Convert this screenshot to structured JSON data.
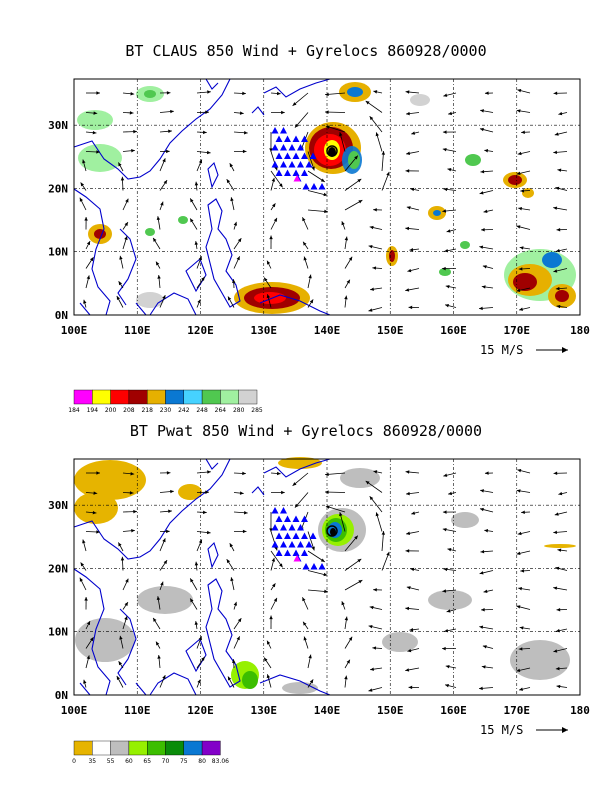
{
  "top": {
    "title": "BT CLAUS 850 Wind + Gyrelocs 860928/0000",
    "colorbar": {
      "colors": [
        "#ff00ff",
        "#ffff00",
        "#ff0000",
        "#a00000",
        "#e6b000",
        "#0a78d2",
        "#46d2ff",
        "#50c850",
        "#a0f0a0",
        "#d2d2d2"
      ],
      "labels": [
        "184",
        "194",
        "200",
        "208",
        "218",
        "230",
        "242",
        "248",
        "264",
        "280",
        "285"
      ]
    }
  },
  "bottom": {
    "title": "BT Pwat 850 Wind + Gyrelocs 860928/0000",
    "colorbar": {
      "colors": [
        "#e6b400",
        "#ffffff",
        "#bebebe",
        "#96f000",
        "#3cbe00",
        "#0a8c0a",
        "#0a78d2",
        "#8200c8"
      ],
      "labels": [
        "0",
        "35",
        "55",
        "60",
        "65",
        "70",
        "75",
        "80",
        "83.06"
      ]
    }
  },
  "axes": {
    "x_ticks": [
      "100E",
      "110E",
      "120E",
      "130E",
      "140E",
      "150E",
      "160E",
      "170E",
      "180"
    ],
    "y_ticks": [
      "0N",
      "10N",
      "20N",
      "30N"
    ],
    "vector_label": "15 M/S"
  },
  "colors": {
    "coast": "#0000cc",
    "gyre": "#0000ff",
    "gyre_center": "#ff00ff"
  }
}
